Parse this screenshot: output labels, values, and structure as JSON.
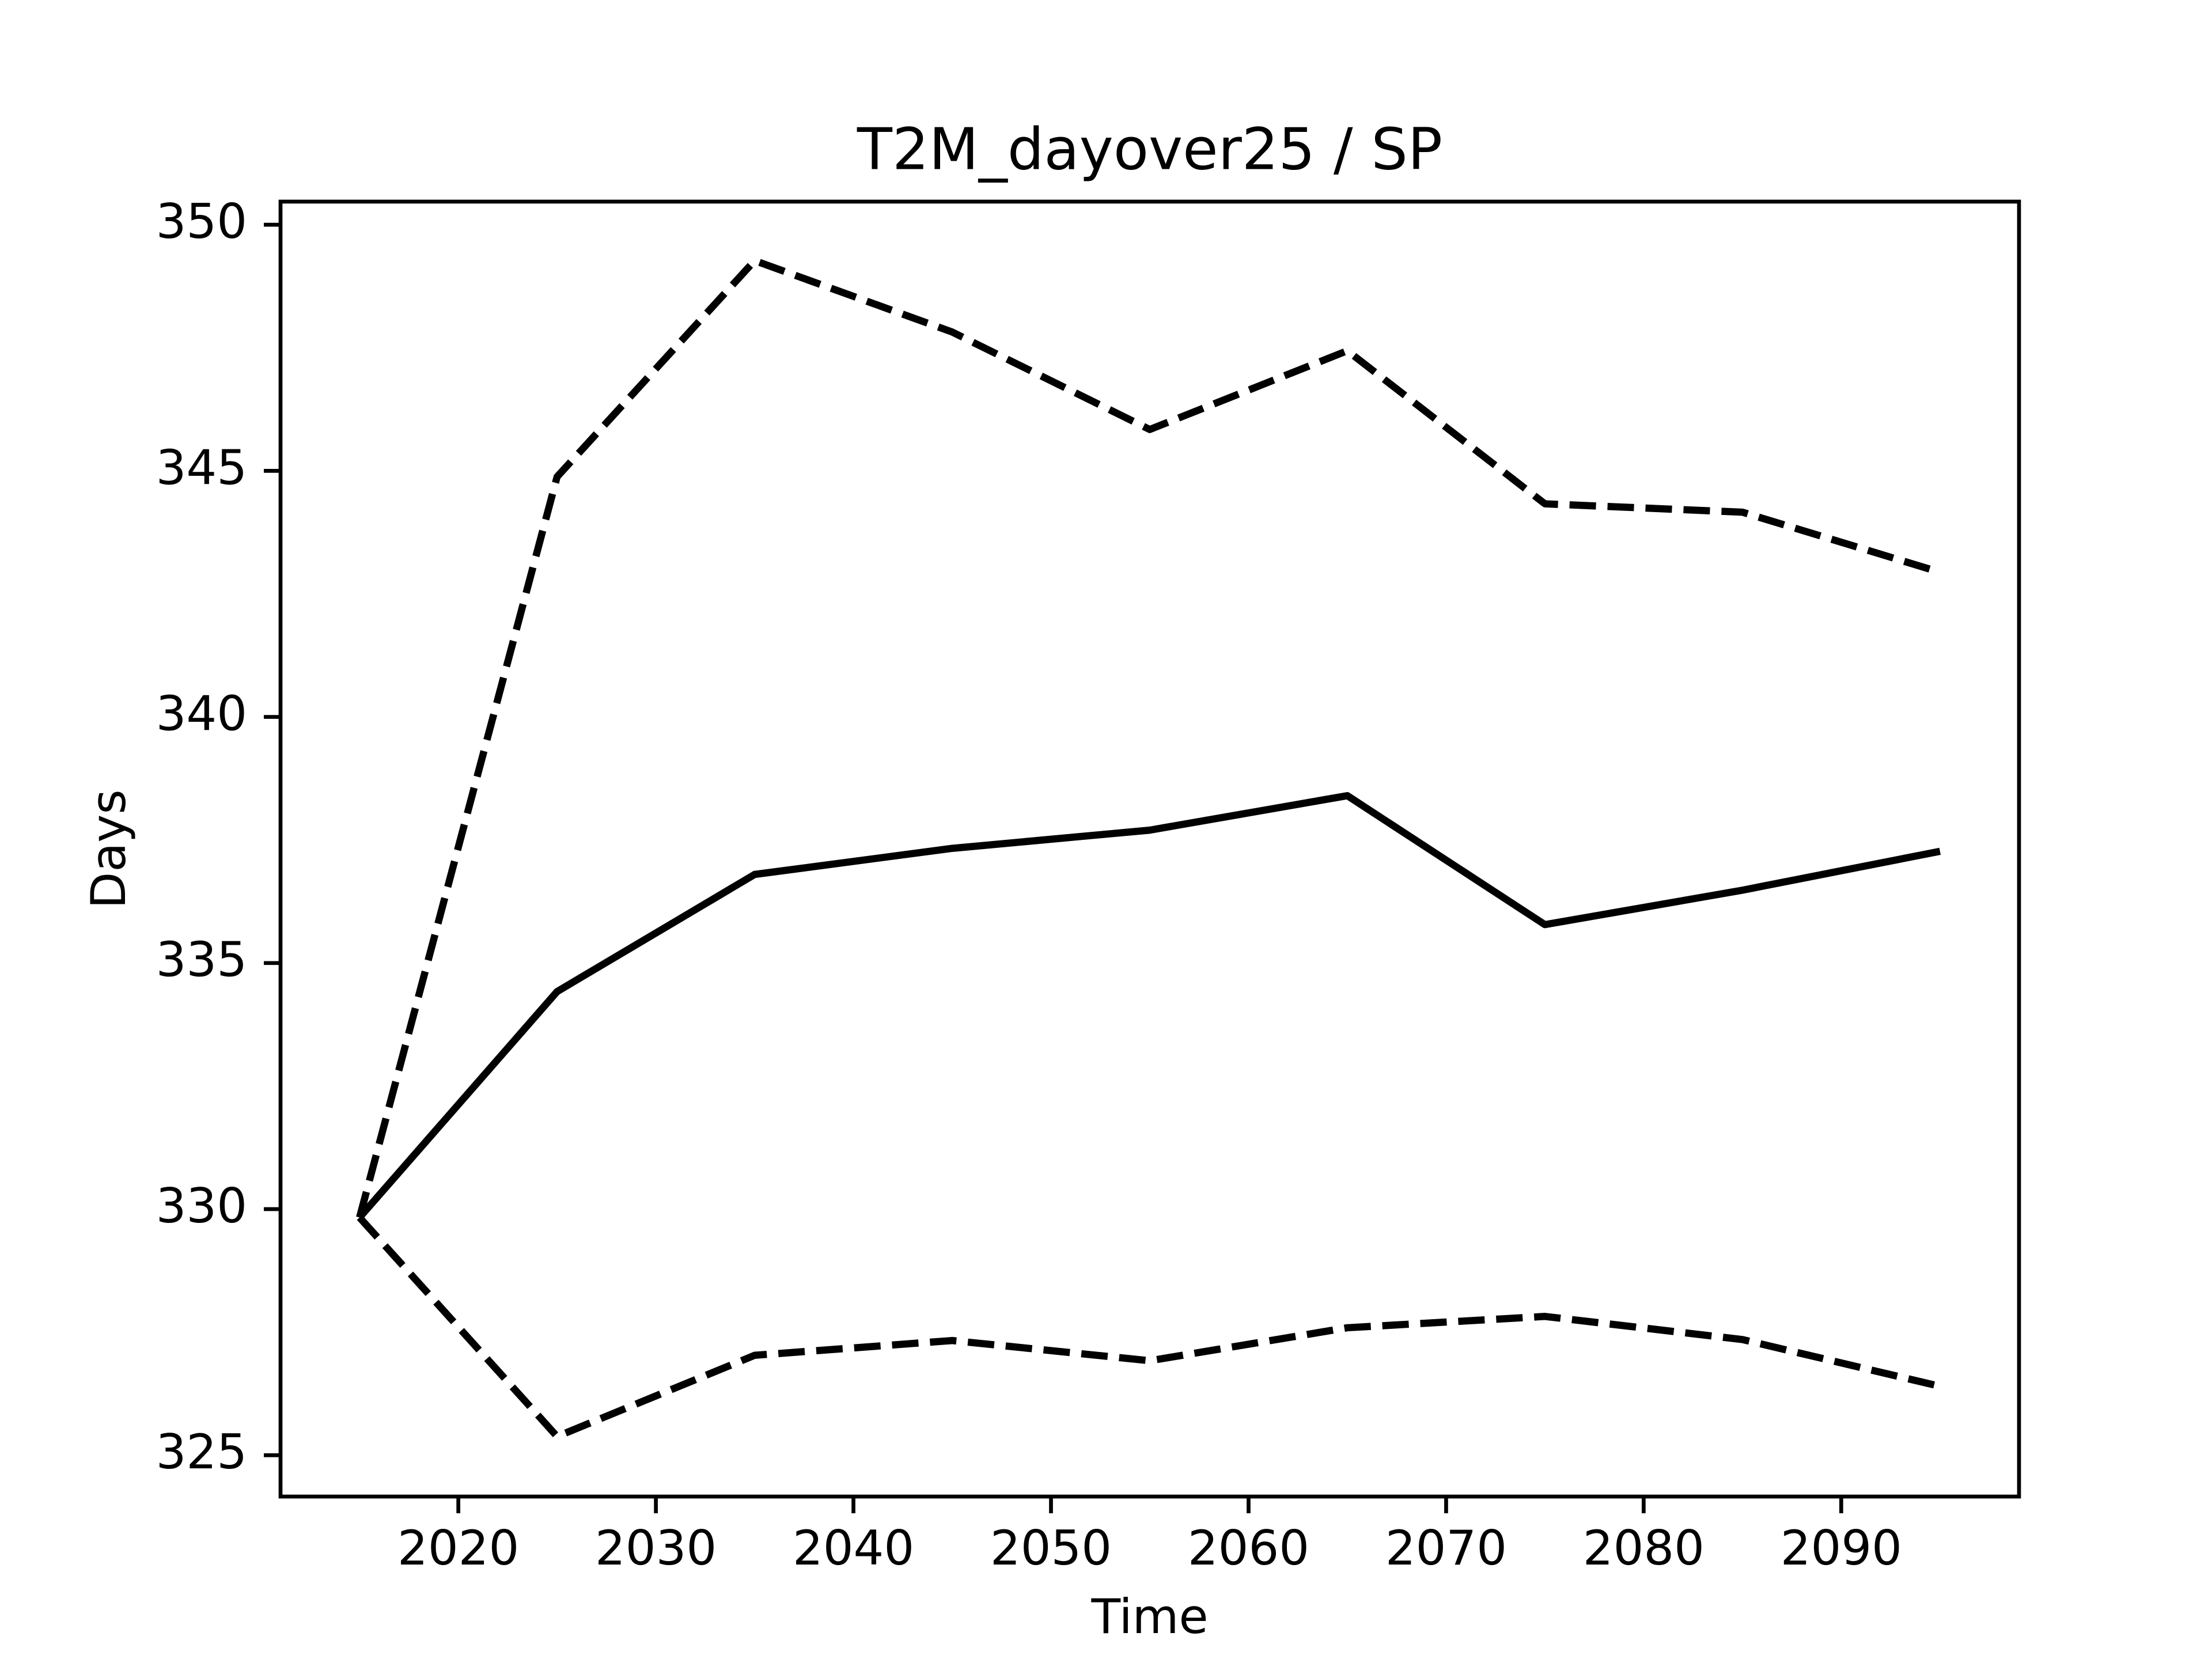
{
  "chart_data": {
    "type": "line",
    "title": "T2M_dayover25 / SP",
    "x_label": "Time",
    "y_label": "Days",
    "x": [
      2015,
      2025,
      2035,
      2045,
      2055,
      2065,
      2075,
      2085,
      2095
    ],
    "series": [
      {
        "color": "#000000",
        "dash": "solid",
        "values": [
          329.83,
          334.42,
          336.8,
          337.33,
          337.7,
          338.4,
          335.78,
          336.48,
          337.27
        ]
      },
      {
        "color": "#000000",
        "dash": "dashed",
        "values": [
          329.83,
          344.88,
          349.27,
          347.82,
          345.84,
          347.44,
          344.33,
          344.16,
          342.94
        ]
      },
      {
        "color": "#000000",
        "dash": "dashed",
        "values": [
          329.83,
          325.38,
          327.03,
          327.33,
          326.92,
          327.59,
          327.82,
          327.35,
          326.4
        ]
      }
    ],
    "xlim": [
      2011,
      2099
    ],
    "xticks": [
      2020,
      2030,
      2040,
      2050,
      2060,
      2070,
      2080,
      2090
    ],
    "ylim": [
      324.16,
      350.47
    ],
    "yticks": [
      325,
      330,
      335,
      340,
      345,
      350
    ],
    "grid": false
  }
}
